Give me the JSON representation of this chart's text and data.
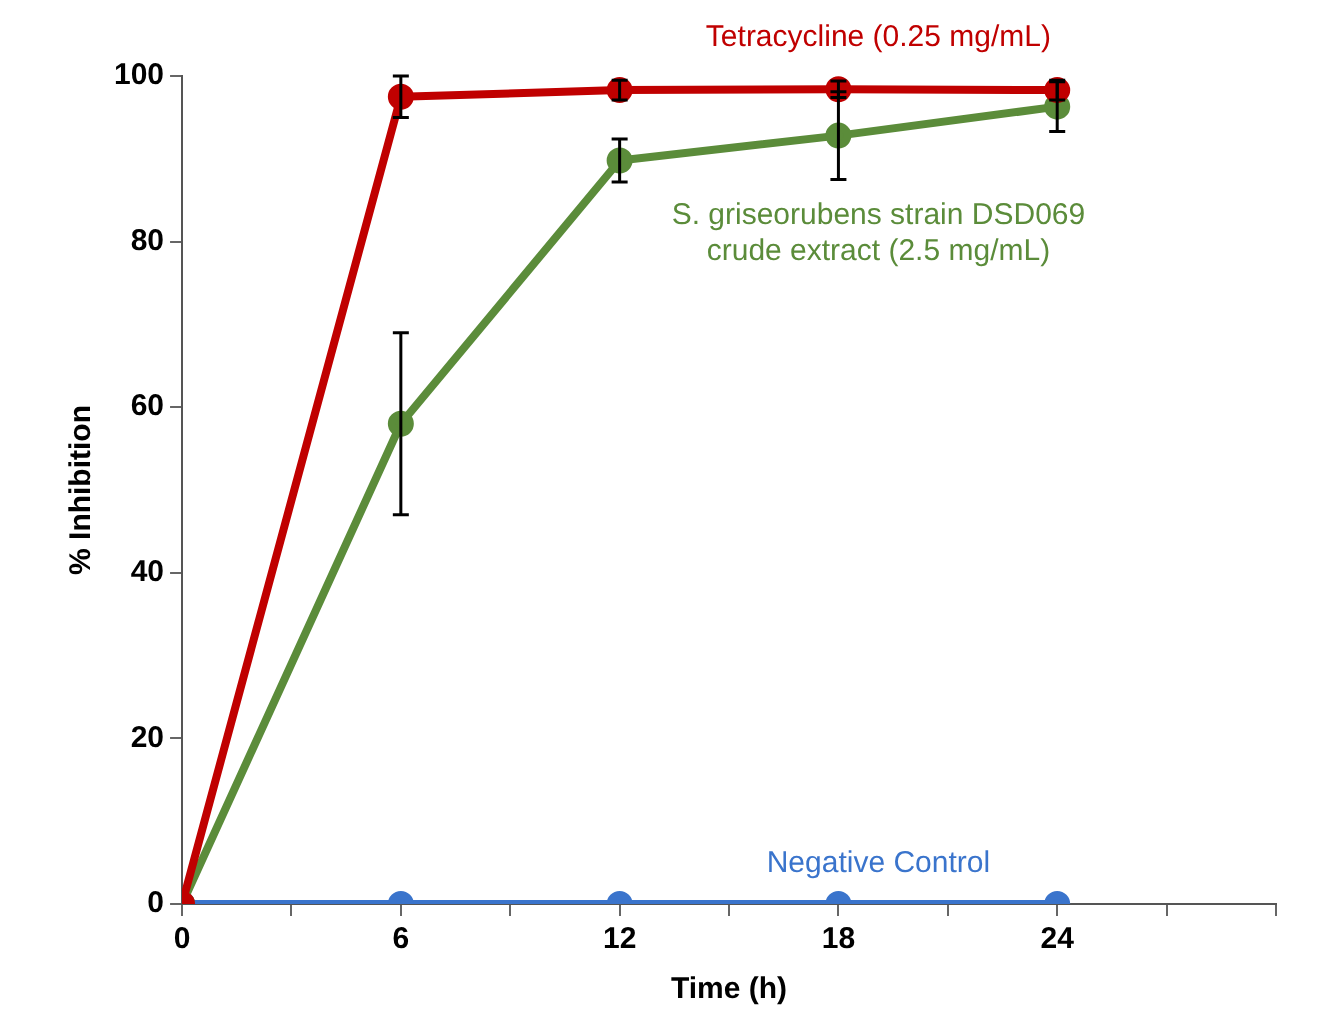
{
  "chart_data": {
    "type": "line",
    "xlabel": "Time (h)",
    "ylabel": "% Inhibition",
    "x": [
      0,
      6,
      12,
      18,
      24
    ],
    "xlim": [
      0,
      30
    ],
    "xticks": [
      0,
      {
        "value": 3,
        "label": null
      },
      6,
      {
        "value": 9,
        "label": null
      },
      12,
      {
        "value": 15,
        "label": null
      },
      18,
      {
        "value": 21,
        "label": null
      },
      24,
      {
        "value": 27,
        "label": null
      },
      {
        "value": 30,
        "label": null
      }
    ],
    "ylim": [
      0,
      100
    ],
    "yticks": [
      0,
      20,
      40,
      60,
      80,
      100
    ],
    "grid": false,
    "legend": false,
    "marker": "circle",
    "line_style": "solid",
    "series": [
      {
        "name": "Tetracycline (0.25 mg/mL)",
        "color": "#c00000",
        "values": [
          0,
          97.5,
          98.3,
          98.4,
          98.3
        ],
        "errors": [
          null,
          2.5,
          1.2,
          1,
          1.2
        ]
      },
      {
        "name": "S. griseorubens strain DSD069 crude extract (2.5 mg/mL)",
        "color": "#5b8c3a",
        "values": [
          0,
          58,
          89.8,
          92.8,
          96.3
        ],
        "errors": [
          null,
          11,
          2.6,
          5.3,
          3
        ]
      },
      {
        "name": "Negative Control",
        "color": "#3a74cc",
        "values": [
          0,
          0,
          0,
          0,
          0
        ]
      }
    ]
  }
}
